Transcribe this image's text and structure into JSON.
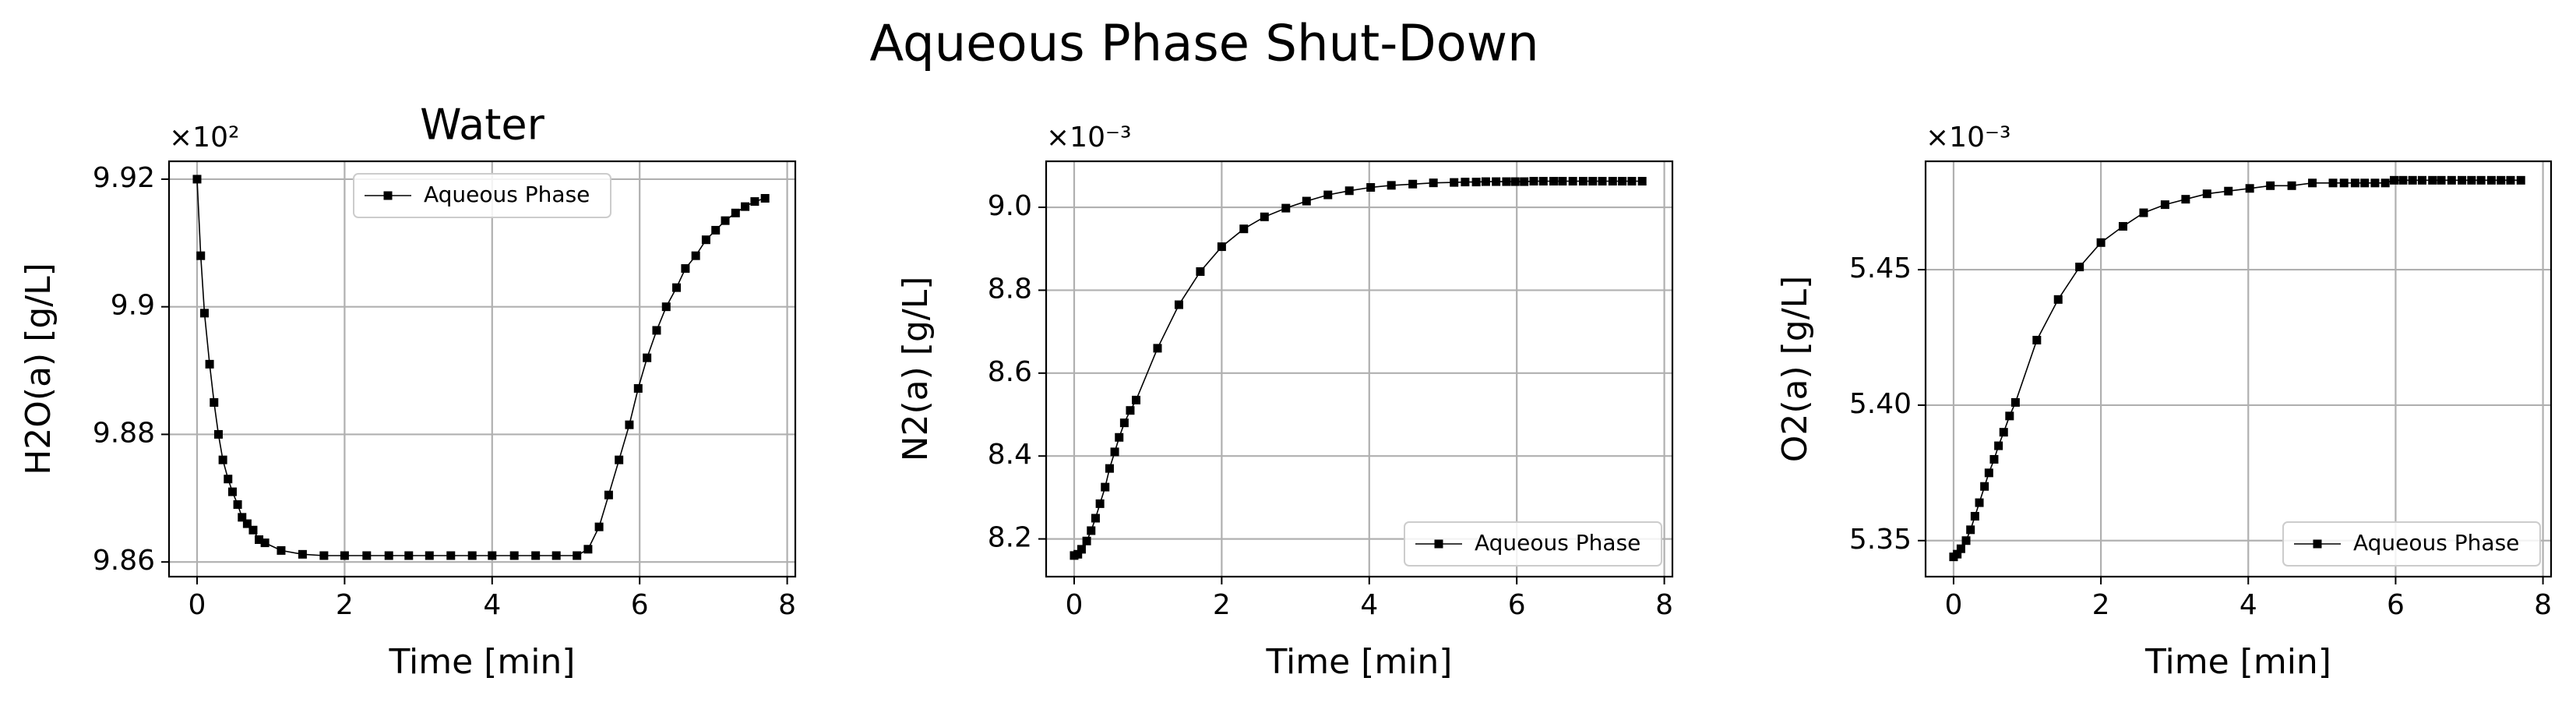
{
  "title": "Aqueous Phase Shut-Down",
  "chart_data": [
    {
      "type": "line",
      "title": "Water",
      "xlabel": "Time [min]",
      "ylabel": "H2O(a) [g/L]",
      "y_offset_label": "×10²",
      "xlim": [
        -0.38,
        8.11
      ],
      "xticks": [
        0,
        2,
        4,
        6,
        8
      ],
      "ylim": [
        9.8577,
        9.9228
      ],
      "yticks": [
        9.86,
        9.88,
        9.9,
        {
          "value": 9.92,
          "label": "9.92"
        }
      ],
      "yticks_fmt": null,
      "grid": true,
      "legend": "upper center",
      "x": [
        0,
        0.05,
        0.1,
        0.17,
        0.23,
        0.29,
        0.35,
        0.42,
        0.48,
        0.55,
        0.61,
        0.68,
        0.76,
        0.84,
        0.92,
        1.14,
        1.43,
        1.72,
        2.0,
        2.3,
        2.6,
        2.87,
        3.15,
        3.44,
        3.73,
        4.0,
        4.3,
        4.59,
        4.87,
        5.15,
        5.3,
        5.45,
        5.58,
        5.72,
        5.86,
        5.98,
        6.1,
        6.23,
        6.36,
        6.5,
        6.62,
        6.76,
        6.9,
        7.03,
        7.16,
        7.3,
        7.43,
        7.56,
        7.7
      ],
      "series": [
        {
          "name": "Aqueous Phase",
          "color": "#000000",
          "values": [
            9.92,
            9.908,
            9.899,
            9.891,
            9.885,
            9.88,
            9.876,
            9.873,
            9.871,
            9.869,
            9.867,
            9.866,
            9.865,
            9.8635,
            9.863,
            9.8618,
            9.8612,
            9.861,
            9.861,
            9.861,
            9.861,
            9.861,
            9.861,
            9.861,
            9.861,
            9.861,
            9.861,
            9.861,
            9.861,
            9.861,
            9.862,
            9.8655,
            9.8705,
            9.876,
            9.8815,
            9.8872,
            9.892,
            9.8963,
            9.9,
            9.903,
            9.906,
            9.908,
            9.9105,
            9.912,
            9.9135,
            9.9147,
            9.9157,
            9.9165,
            9.917
          ]
        }
      ]
    },
    {
      "type": "line",
      "xlabel": "Time [min]",
      "ylabel": "N2(a) [g/L]",
      "y_offset_label": "×10⁻³",
      "xlim": [
        -0.38,
        8.11
      ],
      "xticks": [
        0,
        2,
        4,
        6,
        8
      ],
      "ylim": [
        8.109,
        9.111
      ],
      "yticks": [
        8.2,
        8.4,
        8.6,
        8.8,
        {
          "value": 9.0,
          "label": "9.0"
        }
      ],
      "grid": true,
      "legend": "lower right",
      "x": [
        0,
        0.05,
        0.1,
        0.17,
        0.23,
        0.29,
        0.35,
        0.42,
        0.48,
        0.55,
        0.61,
        0.68,
        0.76,
        0.84,
        1.13,
        1.42,
        1.71,
        2.0,
        2.3,
        2.58,
        2.87,
        3.15,
        3.44,
        3.73,
        4.02,
        4.3,
        4.59,
        4.87,
        5.15,
        5.3,
        5.45,
        5.58,
        5.72,
        5.86,
        5.98,
        6.1,
        6.23,
        6.36,
        6.5,
        6.62,
        6.76,
        6.9,
        7.03,
        7.16,
        7.3,
        7.43,
        7.56,
        7.7
      ],
      "series": [
        {
          "name": "Aqueous Phase",
          "color": "#000000",
          "values": [
            8.16,
            8.163,
            8.175,
            8.195,
            8.22,
            8.25,
            8.285,
            8.325,
            8.37,
            8.41,
            8.445,
            8.48,
            8.51,
            8.535,
            8.66,
            8.765,
            8.845,
            8.905,
            8.948,
            8.977,
            8.998,
            9.015,
            9.03,
            9.04,
            9.048,
            9.053,
            9.056,
            9.059,
            9.06,
            9.061,
            9.061,
            9.062,
            9.062,
            9.062,
            9.062,
            9.062,
            9.063,
            9.063,
            9.063,
            9.063,
            9.063,
            9.063,
            9.063,
            9.063,
            9.063,
            9.063,
            9.063,
            9.063
          ]
        }
      ]
    },
    {
      "type": "line",
      "xlabel": "Time [min]",
      "ylabel": "O2(a) [g/L]",
      "y_offset_label": "×10⁻³",
      "xlim": [
        -0.38,
        8.11
      ],
      "xticks": [
        0,
        2,
        4,
        6,
        8
      ],
      "ylim": [
        5.3367,
        5.49
      ],
      "yticks": [
        {
          "value": 5.35,
          "label": "5.35"
        },
        {
          "value": 5.4,
          "label": "5.40"
        },
        5.45
      ],
      "grid": true,
      "legend": "lower right",
      "x": [
        0,
        0.05,
        0.1,
        0.17,
        0.23,
        0.29,
        0.35,
        0.42,
        0.48,
        0.55,
        0.61,
        0.68,
        0.76,
        0.84,
        1.13,
        1.42,
        1.71,
        2.0,
        2.3,
        2.58,
        2.87,
        3.15,
        3.44,
        3.73,
        4.02,
        4.3,
        4.59,
        4.87,
        5.15,
        5.3,
        5.45,
        5.58,
        5.72,
        5.86,
        5.98,
        6.1,
        6.23,
        6.36,
        6.5,
        6.62,
        6.76,
        6.9,
        7.03,
        7.16,
        7.3,
        7.43,
        7.56,
        7.7
      ],
      "series": [
        {
          "name": "Aqueous Phase",
          "color": "#000000",
          "values": [
            5.344,
            5.345,
            5.347,
            5.35,
            5.354,
            5.359,
            5.364,
            5.37,
            5.375,
            5.38,
            5.385,
            5.39,
            5.396,
            5.401,
            5.424,
            5.439,
            5.451,
            5.46,
            5.466,
            5.471,
            5.474,
            5.476,
            5.478,
            5.479,
            5.48,
            5.481,
            5.481,
            5.482,
            5.482,
            5.482,
            5.482,
            5.482,
            5.482,
            5.482,
            5.483,
            5.483,
            5.483,
            5.483,
            5.483,
            5.483,
            5.483,
            5.483,
            5.483,
            5.483,
            5.483,
            5.483,
            5.483,
            5.483
          ]
        }
      ]
    }
  ]
}
